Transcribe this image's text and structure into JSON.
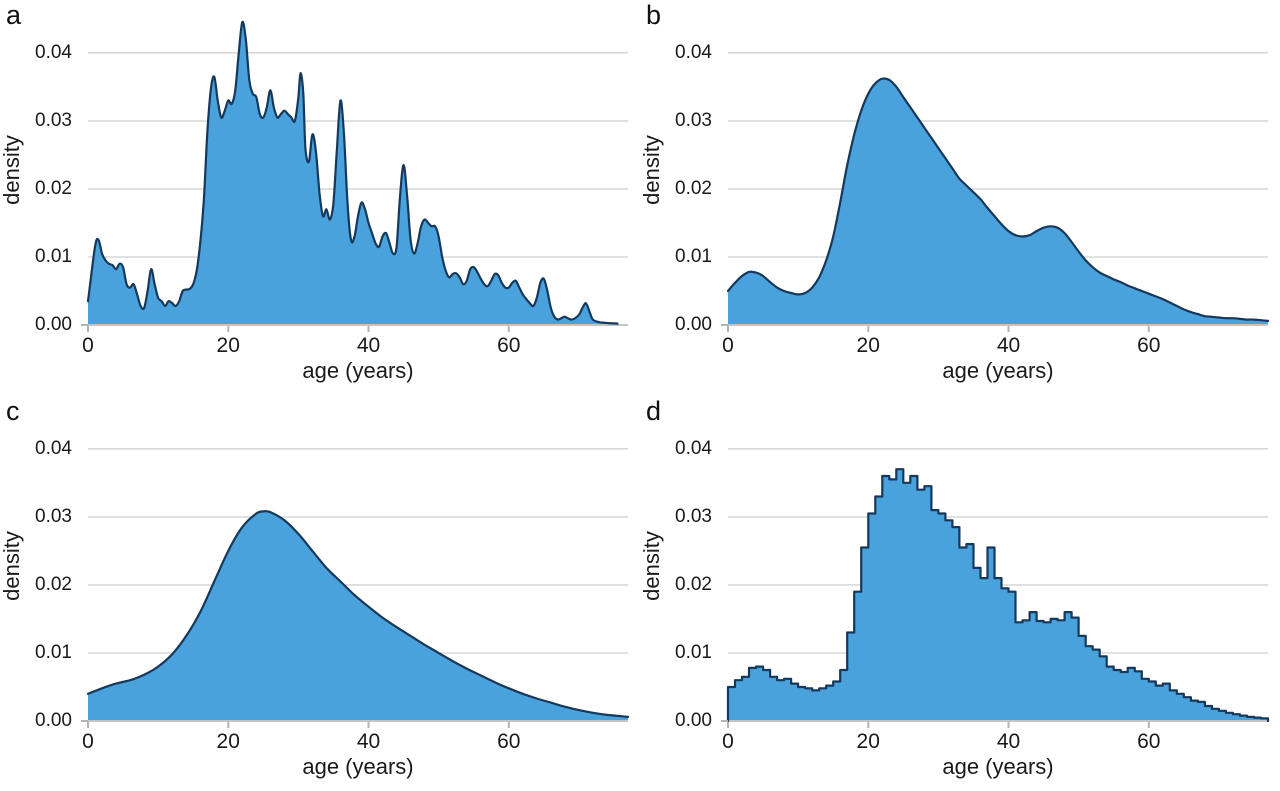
{
  "figure": {
    "background": "#ffffff",
    "fill_color": "#4aa2dc",
    "line_color": "#14395d",
    "grid_color": "#d9d9d9",
    "axis_color": "#c4c4c4",
    "tick_color": "#b3b3b3",
    "text_color": "#1a1a1a"
  },
  "chart_data": [
    {
      "panel": "a",
      "type": "area",
      "style": "kde-jagged",
      "title": "",
      "xlabel": "age (years)",
      "ylabel": "density",
      "xlim": [
        0,
        77
      ],
      "ylim": [
        0,
        0.046
      ],
      "xticks": [
        0,
        20,
        40,
        60
      ],
      "ytick_values": [
        0,
        0.01,
        0.02,
        0.03,
        0.04
      ],
      "ytick_labels": [
        "0.00",
        "0.01",
        "0.02",
        "0.03",
        "0.04"
      ],
      "grid": "horizontal",
      "legend": "none",
      "points": [
        [
          0,
          0.0035
        ],
        [
          1,
          0.0115
        ],
        [
          1.5,
          0.0125
        ],
        [
          2,
          0.0105
        ],
        [
          2.5,
          0.0095
        ],
        [
          3,
          0.009
        ],
        [
          3.5,
          0.0088
        ],
        [
          4,
          0.0082
        ],
        [
          4.5,
          0.009
        ],
        [
          5,
          0.0085
        ],
        [
          5.5,
          0.006
        ],
        [
          6,
          0.0055
        ],
        [
          6.5,
          0.006
        ],
        [
          7,
          0.0045
        ],
        [
          7.5,
          0.0028
        ],
        [
          8,
          0.0025
        ],
        [
          8.5,
          0.005
        ],
        [
          9,
          0.0082
        ],
        [
          9.5,
          0.006
        ],
        [
          10,
          0.004
        ],
        [
          10.5,
          0.0035
        ],
        [
          11,
          0.0028
        ],
        [
          11.5,
          0.0035
        ],
        [
          12,
          0.0032
        ],
        [
          12.5,
          0.0028
        ],
        [
          13,
          0.0035
        ],
        [
          13.5,
          0.005
        ],
        [
          14,
          0.0052
        ],
        [
          14.5,
          0.0053
        ],
        [
          15,
          0.006
        ],
        [
          15.5,
          0.008
        ],
        [
          16,
          0.012
        ],
        [
          16.5,
          0.018
        ],
        [
          17,
          0.028
        ],
        [
          17.5,
          0.0345
        ],
        [
          18,
          0.0365
        ],
        [
          18.5,
          0.033
        ],
        [
          19,
          0.0305
        ],
        [
          19.5,
          0.0315
        ],
        [
          20,
          0.033
        ],
        [
          20.5,
          0.0325
        ],
        [
          21,
          0.0345
        ],
        [
          21.5,
          0.04
        ],
        [
          22,
          0.0445
        ],
        [
          22.5,
          0.042
        ],
        [
          23,
          0.036
        ],
        [
          23.5,
          0.034
        ],
        [
          24,
          0.0335
        ],
        [
          24.5,
          0.031
        ],
        [
          25,
          0.0305
        ],
        [
          25.5,
          0.032
        ],
        [
          26,
          0.0345
        ],
        [
          26.5,
          0.032
        ],
        [
          27,
          0.0305
        ],
        [
          27.5,
          0.031
        ],
        [
          28,
          0.0315
        ],
        [
          28.5,
          0.031
        ],
        [
          29,
          0.0305
        ],
        [
          29.5,
          0.03
        ],
        [
          30,
          0.0335
        ],
        [
          30.3,
          0.037
        ],
        [
          30.7,
          0.034
        ],
        [
          31,
          0.026
        ],
        [
          31.5,
          0.024
        ],
        [
          32,
          0.028
        ],
        [
          32.5,
          0.0255
        ],
        [
          33,
          0.0195
        ],
        [
          33.5,
          0.016
        ],
        [
          34,
          0.017
        ],
        [
          34.5,
          0.0155
        ],
        [
          35,
          0.018
        ],
        [
          35.5,
          0.026
        ],
        [
          36,
          0.033
        ],
        [
          36.5,
          0.028
        ],
        [
          37,
          0.018
        ],
        [
          37.5,
          0.0125
        ],
        [
          38,
          0.013
        ],
        [
          38.5,
          0.016
        ],
        [
          39,
          0.018
        ],
        [
          39.5,
          0.017
        ],
        [
          40,
          0.015
        ],
        [
          40.5,
          0.0135
        ],
        [
          41,
          0.012
        ],
        [
          41.5,
          0.0115
        ],
        [
          42,
          0.013
        ],
        [
          42.5,
          0.0135
        ],
        [
          43,
          0.012
        ],
        [
          43.5,
          0.0105
        ],
        [
          44,
          0.0115
        ],
        [
          44.5,
          0.019
        ],
        [
          45,
          0.0235
        ],
        [
          45.5,
          0.019
        ],
        [
          46,
          0.0125
        ],
        [
          46.5,
          0.0105
        ],
        [
          47,
          0.012
        ],
        [
          47.5,
          0.0145
        ],
        [
          48,
          0.0155
        ],
        [
          48.5,
          0.015
        ],
        [
          49,
          0.0145
        ],
        [
          49.5,
          0.0145
        ],
        [
          50,
          0.013
        ],
        [
          50.5,
          0.01
        ],
        [
          51,
          0.008
        ],
        [
          51.5,
          0.007
        ],
        [
          52,
          0.0075
        ],
        [
          52.5,
          0.0076
        ],
        [
          53,
          0.007
        ],
        [
          53.5,
          0.006
        ],
        [
          54,
          0.0065
        ],
        [
          54.5,
          0.0082
        ],
        [
          55,
          0.0085
        ],
        [
          55.5,
          0.0078
        ],
        [
          56,
          0.0068
        ],
        [
          56.5,
          0.006
        ],
        [
          57,
          0.0057
        ],
        [
          57.5,
          0.0065
        ],
        [
          58,
          0.0075
        ],
        [
          58.5,
          0.0073
        ],
        [
          59,
          0.0062
        ],
        [
          59.5,
          0.0055
        ],
        [
          60,
          0.0055
        ],
        [
          60.5,
          0.0062
        ],
        [
          61,
          0.0065
        ],
        [
          61.5,
          0.0055
        ],
        [
          62,
          0.0045
        ],
        [
          62.5,
          0.0038
        ],
        [
          63,
          0.0032
        ],
        [
          63.5,
          0.0028
        ],
        [
          64,
          0.004
        ],
        [
          64.5,
          0.0062
        ],
        [
          65,
          0.0068
        ],
        [
          65.5,
          0.005
        ],
        [
          66,
          0.0025
        ],
        [
          66.5,
          0.0012
        ],
        [
          67,
          0.0008
        ],
        [
          67.5,
          0.001
        ],
        [
          68,
          0.0012
        ],
        [
          69,
          0.0008
        ],
        [
          70,
          0.0015
        ],
        [
          70.5,
          0.0025
        ],
        [
          71,
          0.0032
        ],
        [
          71.5,
          0.002
        ],
        [
          72,
          0.0008
        ],
        [
          73,
          0.0004
        ],
        [
          74,
          0.0003
        ],
        [
          75.5,
          0.0002
        ]
      ]
    },
    {
      "panel": "b",
      "type": "area",
      "style": "kde-smooth",
      "title": "",
      "xlabel": "age (years)",
      "ylabel": "density",
      "xlim": [
        0,
        77
      ],
      "ylim": [
        0,
        0.046
      ],
      "xticks": [
        0,
        20,
        40,
        60
      ],
      "ytick_values": [
        0,
        0.01,
        0.02,
        0.03,
        0.04
      ],
      "ytick_labels": [
        "0.00",
        "0.01",
        "0.02",
        "0.03",
        "0.04"
      ],
      "grid": "horizontal",
      "legend": "none",
      "points": [
        [
          0,
          0.005
        ],
        [
          1,
          0.0062
        ],
        [
          2,
          0.0072
        ],
        [
          3,
          0.0078
        ],
        [
          4,
          0.0077
        ],
        [
          5,
          0.0072
        ],
        [
          6,
          0.0063
        ],
        [
          7,
          0.0055
        ],
        [
          8,
          0.005
        ],
        [
          9,
          0.0047
        ],
        [
          10,
          0.0045
        ],
        [
          11,
          0.0047
        ],
        [
          12,
          0.0055
        ],
        [
          13,
          0.007
        ],
        [
          14,
          0.0095
        ],
        [
          15,
          0.013
        ],
        [
          16,
          0.018
        ],
        [
          17,
          0.0235
        ],
        [
          18,
          0.028
        ],
        [
          19,
          0.0315
        ],
        [
          20,
          0.034
        ],
        [
          21,
          0.0355
        ],
        [
          22,
          0.0362
        ],
        [
          23,
          0.036
        ],
        [
          24,
          0.035
        ],
        [
          25,
          0.0335
        ],
        [
          26,
          0.032
        ],
        [
          27,
          0.0305
        ],
        [
          28,
          0.029
        ],
        [
          29,
          0.0275
        ],
        [
          30,
          0.026
        ],
        [
          31,
          0.0245
        ],
        [
          32,
          0.023
        ],
        [
          33,
          0.0215
        ],
        [
          34,
          0.0205
        ],
        [
          35,
          0.0195
        ],
        [
          36,
          0.0185
        ],
        [
          37,
          0.0172
        ],
        [
          38,
          0.016
        ],
        [
          39,
          0.0148
        ],
        [
          40,
          0.0138
        ],
        [
          41,
          0.0132
        ],
        [
          42,
          0.013
        ],
        [
          43,
          0.0132
        ],
        [
          44,
          0.0138
        ],
        [
          45,
          0.0143
        ],
        [
          46,
          0.0145
        ],
        [
          47,
          0.0143
        ],
        [
          48,
          0.0135
        ],
        [
          49,
          0.0122
        ],
        [
          50,
          0.0108
        ],
        [
          51,
          0.0095
        ],
        [
          52,
          0.0085
        ],
        [
          53,
          0.0077
        ],
        [
          54,
          0.0072
        ],
        [
          55,
          0.0067
        ],
        [
          56,
          0.0063
        ],
        [
          57,
          0.0058
        ],
        [
          58,
          0.0054
        ],
        [
          59,
          0.005
        ],
        [
          60,
          0.0046
        ],
        [
          61,
          0.0042
        ],
        [
          62,
          0.0038
        ],
        [
          63,
          0.0033
        ],
        [
          64,
          0.0028
        ],
        [
          65,
          0.0023
        ],
        [
          66,
          0.0019
        ],
        [
          67,
          0.0016
        ],
        [
          68,
          0.0013
        ],
        [
          69,
          0.0012
        ],
        [
          70,
          0.0011
        ],
        [
          71,
          0.001
        ],
        [
          72,
          0.001
        ],
        [
          73,
          0.0009
        ],
        [
          74,
          0.0008
        ],
        [
          75,
          0.0008
        ],
        [
          76,
          0.0007
        ],
        [
          77,
          0.0006
        ]
      ]
    },
    {
      "panel": "c",
      "type": "area",
      "style": "kde-smooth",
      "title": "",
      "xlabel": "age (years)",
      "ylabel": "density",
      "xlim": [
        0,
        77
      ],
      "ylim": [
        0,
        0.046
      ],
      "xticks": [
        0,
        20,
        40,
        60
      ],
      "ytick_values": [
        0,
        0.01,
        0.02,
        0.03,
        0.04
      ],
      "ytick_labels": [
        "0.00",
        "0.01",
        "0.02",
        "0.03",
        "0.04"
      ],
      "grid": "horizontal",
      "legend": "none",
      "points": [
        [
          0,
          0.004
        ],
        [
          2,
          0.0048
        ],
        [
          4,
          0.0055
        ],
        [
          6,
          0.006
        ],
        [
          8,
          0.0068
        ],
        [
          10,
          0.008
        ],
        [
          12,
          0.0098
        ],
        [
          14,
          0.0125
        ],
        [
          16,
          0.016
        ],
        [
          18,
          0.0205
        ],
        [
          20,
          0.025
        ],
        [
          22,
          0.0285
        ],
        [
          24,
          0.0305
        ],
        [
          25,
          0.0308
        ],
        [
          26,
          0.0307
        ],
        [
          28,
          0.0295
        ],
        [
          30,
          0.0275
        ],
        [
          32,
          0.025
        ],
        [
          34,
          0.0225
        ],
        [
          36,
          0.0205
        ],
        [
          38,
          0.0185
        ],
        [
          40,
          0.0168
        ],
        [
          42,
          0.0152
        ],
        [
          44,
          0.0138
        ],
        [
          46,
          0.0125
        ],
        [
          48,
          0.0112
        ],
        [
          50,
          0.01
        ],
        [
          52,
          0.0088
        ],
        [
          54,
          0.0077
        ],
        [
          56,
          0.0067
        ],
        [
          58,
          0.0057
        ],
        [
          60,
          0.0048
        ],
        [
          62,
          0.004
        ],
        [
          64,
          0.0033
        ],
        [
          66,
          0.0027
        ],
        [
          68,
          0.0021
        ],
        [
          70,
          0.0016
        ],
        [
          72,
          0.0012
        ],
        [
          74,
          0.0009
        ],
        [
          76,
          0.0007
        ],
        [
          77,
          0.0006
        ]
      ]
    },
    {
      "panel": "d",
      "type": "area",
      "style": "step-histogram",
      "title": "",
      "xlabel": "age (years)",
      "ylabel": "density",
      "xlim": [
        0,
        77
      ],
      "ylim": [
        0,
        0.046
      ],
      "xticks": [
        0,
        20,
        40,
        60
      ],
      "ytick_values": [
        0,
        0.01,
        0.02,
        0.03,
        0.04
      ],
      "ytick_labels": [
        "0.00",
        "0.01",
        "0.02",
        "0.03",
        "0.04"
      ],
      "grid": "horizontal",
      "legend": "none",
      "bin_start": 0,
      "bin_width": 1,
      "values": [
        0.005,
        0.006,
        0.0065,
        0.0078,
        0.008,
        0.0075,
        0.0065,
        0.006,
        0.0062,
        0.0055,
        0.005,
        0.0048,
        0.0045,
        0.0048,
        0.0052,
        0.0058,
        0.0075,
        0.013,
        0.019,
        0.0255,
        0.0305,
        0.033,
        0.036,
        0.0355,
        0.037,
        0.035,
        0.036,
        0.034,
        0.0345,
        0.031,
        0.0305,
        0.0295,
        0.0285,
        0.0255,
        0.026,
        0.0225,
        0.021,
        0.0255,
        0.021,
        0.0195,
        0.019,
        0.0145,
        0.0148,
        0.016,
        0.0147,
        0.0145,
        0.015,
        0.0148,
        0.016,
        0.0152,
        0.0125,
        0.011,
        0.0105,
        0.0095,
        0.008,
        0.0075,
        0.0072,
        0.0078,
        0.0073,
        0.0062,
        0.0058,
        0.0052,
        0.0055,
        0.0045,
        0.004,
        0.0035,
        0.003,
        0.0028,
        0.0022,
        0.0018,
        0.0015,
        0.0012,
        0.001,
        0.0008,
        0.0006,
        0.0005,
        0.0004
      ]
    }
  ]
}
